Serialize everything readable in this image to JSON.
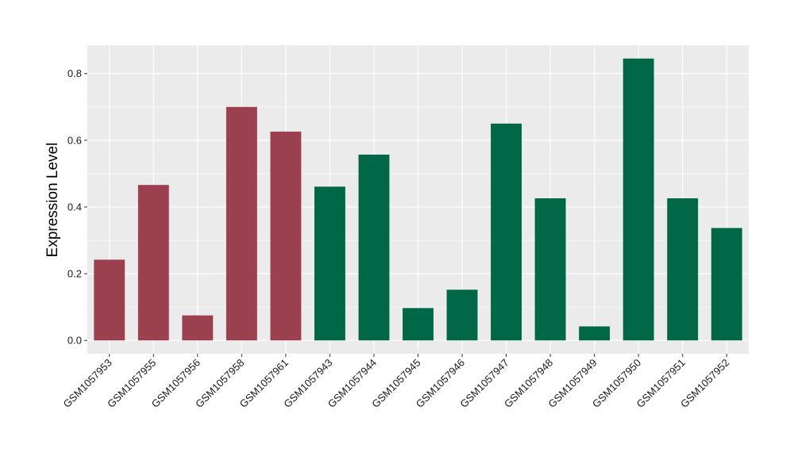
{
  "chart_data": {
    "type": "bar",
    "title": "",
    "xlabel": "",
    "ylabel": "Expression Level",
    "ylim": [
      -0.04,
      0.885
    ],
    "yticks": [
      0.0,
      0.2,
      0.4,
      0.6,
      0.8
    ],
    "ytick_labels": [
      "0.0",
      "0.2",
      "0.4",
      "0.6",
      "0.8"
    ],
    "grid": true,
    "background": "#ebebeb",
    "grid_color": "#ffffff",
    "colors": {
      "group_a": "#9a404e",
      "group_b": "#006846"
    },
    "categories": [
      "GSM1057953",
      "GSM1057955",
      "GSM1057956",
      "GSM1057958",
      "GSM1057961",
      "GSM1057943",
      "GSM1057944",
      "GSM1057945",
      "GSM1057946",
      "GSM1057947",
      "GSM1057948",
      "GSM1057949",
      "GSM1057950",
      "GSM1057951",
      "GSM1057952"
    ],
    "values": [
      0.242,
      0.466,
      0.075,
      0.7,
      0.626,
      0.461,
      0.557,
      0.097,
      0.152,
      0.65,
      0.426,
      0.042,
      0.845,
      0.426,
      0.337
    ],
    "bar_groups": [
      "group_a",
      "group_a",
      "group_a",
      "group_a",
      "group_a",
      "group_b",
      "group_b",
      "group_b",
      "group_b",
      "group_b",
      "group_b",
      "group_b",
      "group_b",
      "group_b",
      "group_b"
    ]
  }
}
